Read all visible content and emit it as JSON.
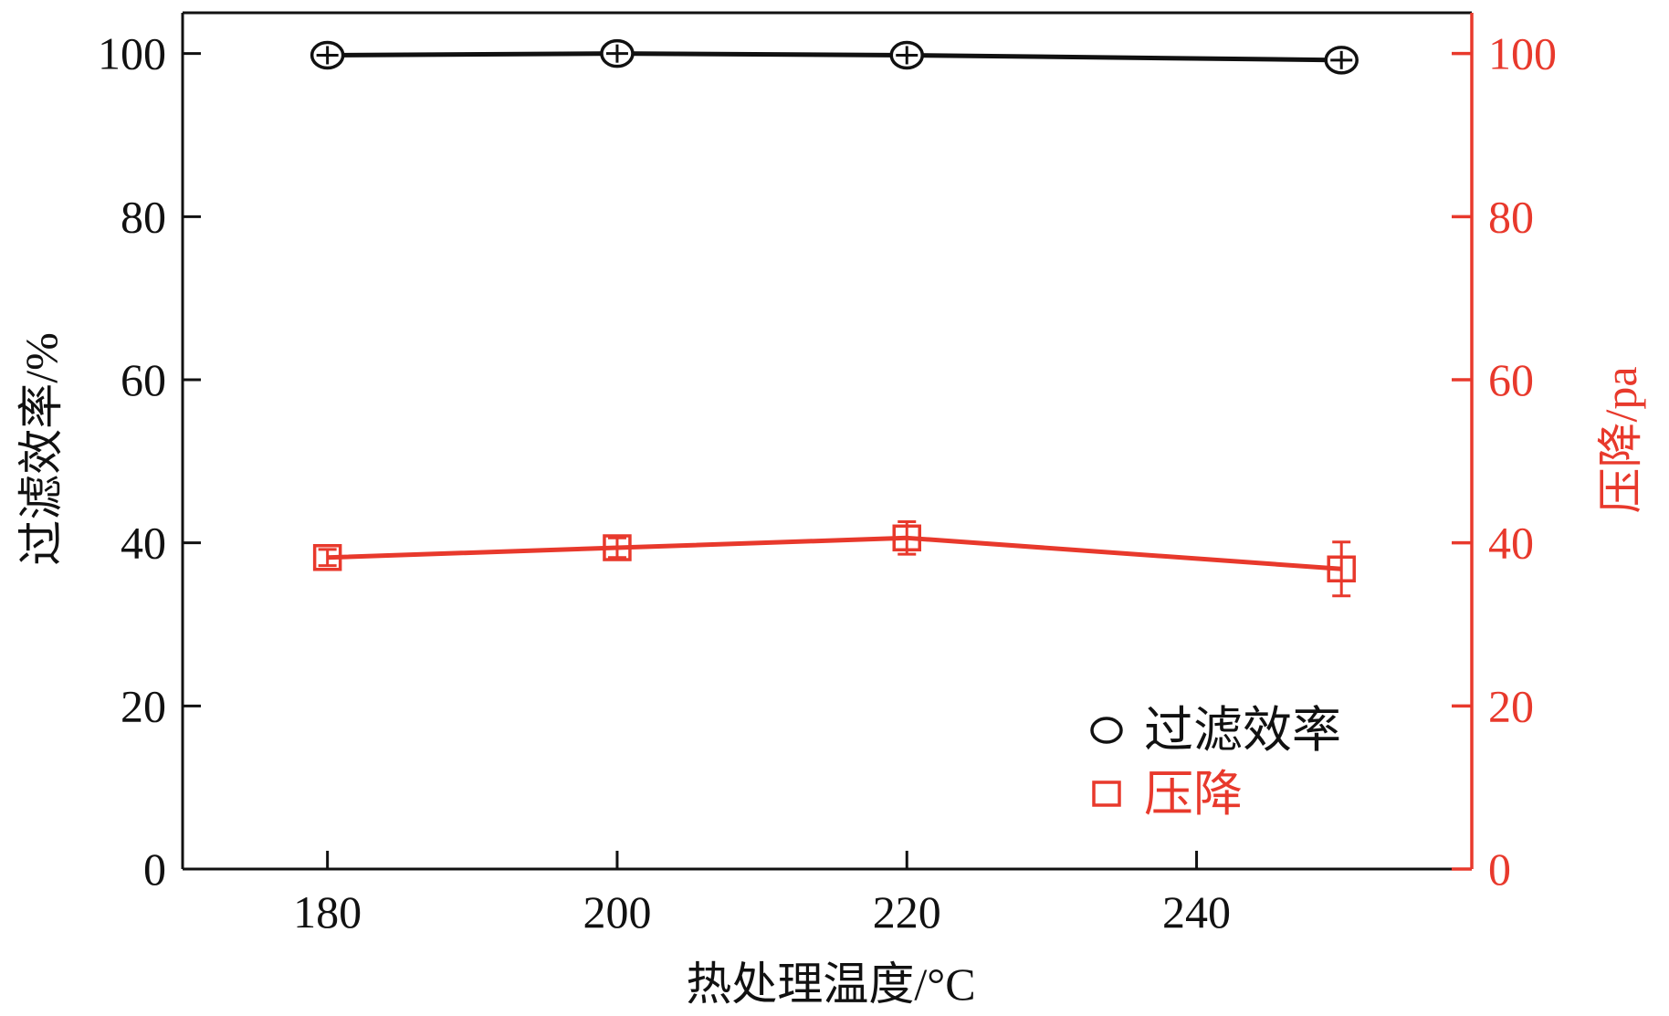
{
  "colors": {
    "axis_left": "#111111",
    "axis_right": "#e8392c",
    "series_efficiency": "#111111",
    "series_pressure": "#e8392c",
    "background": "#ffffff"
  },
  "chart_data": {
    "type": "line",
    "title": "",
    "xlabel": "热处理温度/°C",
    "ylabel_left": "过滤效率/%",
    "ylabel_right": "压降/pa",
    "xlim": [
      170,
      259
    ],
    "ylim_left": [
      0,
      105
    ],
    "ylim_right": [
      0,
      105
    ],
    "x_ticks": [
      180,
      200,
      220,
      240
    ],
    "y_ticks_left": [
      0,
      20,
      40,
      60,
      80,
      100
    ],
    "y_ticks_right": [
      0,
      20,
      40,
      60,
      80,
      100
    ],
    "grid": false,
    "legend_position": "bottom-right",
    "series": [
      {
        "name": "过滤效率",
        "axis": "left",
        "marker": "circle",
        "color": "#111111",
        "x": [
          180,
          200,
          220,
          250
        ],
        "y": [
          99.8,
          100.0,
          99.8,
          99.2
        ],
        "error": [
          0.3,
          0.3,
          0.3,
          0.4
        ]
      },
      {
        "name": "压降",
        "axis": "right",
        "marker": "square",
        "color": "#e8392c",
        "x": [
          180,
          200,
          220,
          250
        ],
        "y": [
          38.2,
          39.4,
          40.6,
          36.8
        ],
        "error": [
          1.0,
          1.2,
          2.0,
          3.3
        ]
      }
    ]
  }
}
